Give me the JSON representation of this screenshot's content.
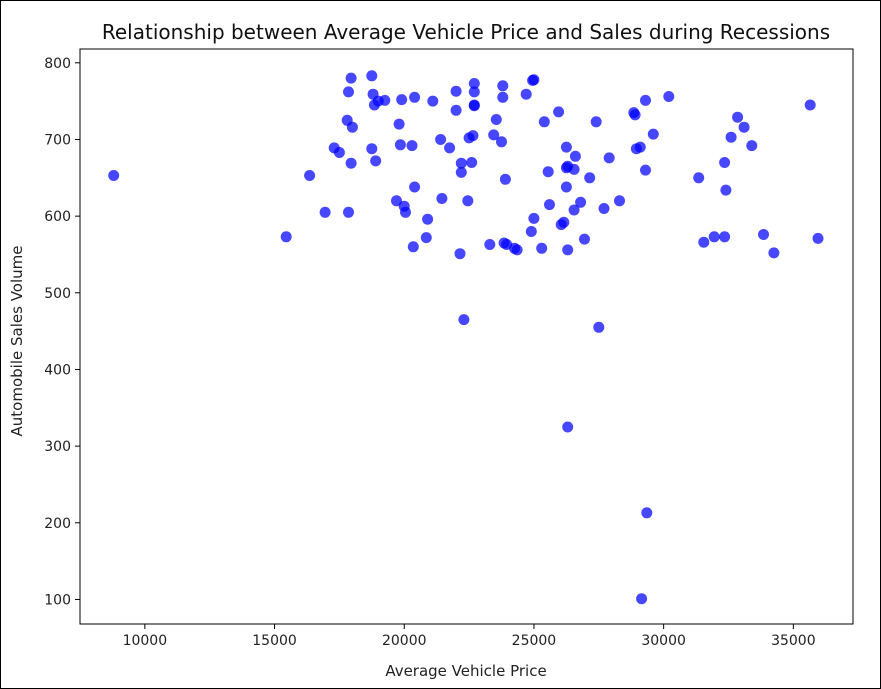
{
  "chart_data": {
    "type": "scatter",
    "title": "Relationship between Average Vehicle Price and Sales during Recessions",
    "xlabel": "Average Vehicle Price",
    "ylabel": "Automobile Sales Volume",
    "xlim": [
      7500,
      37300
    ],
    "ylim": [
      68,
      818
    ],
    "xticks": [
      10000,
      15000,
      20000,
      25000,
      30000,
      35000
    ],
    "yticks": [
      100,
      200,
      300,
      400,
      500,
      600,
      700,
      800
    ],
    "grid": false,
    "marker_color": "#0000ff",
    "marker_opacity": 0.72,
    "x": [
      8800,
      15450,
      16350,
      16950,
      17300,
      17500,
      17800,
      17850,
      17850,
      17950,
      17950,
      18000,
      18750,
      18750,
      18800,
      18850,
      18900,
      19000,
      19250,
      19700,
      19800,
      19850,
      19900,
      20000,
      20050,
      20300,
      20350,
      20400,
      20400,
      20850,
      20900,
      21100,
      21400,
      21450,
      21750,
      22000,
      22000,
      22150,
      22200,
      22200,
      22300,
      22450,
      22500,
      22600,
      22650,
      22700,
      22700,
      22700,
      22700,
      23300,
      23450,
      23550,
      23750,
      23800,
      23800,
      23850,
      23900,
      23950,
      24250,
      24350,
      24700,
      24900,
      24950,
      25000,
      25000,
      25300,
      25400,
      25550,
      25600,
      25950,
      26050,
      26150,
      26250,
      26250,
      26250,
      26300,
      26300,
      26300,
      26550,
      26550,
      26600,
      26800,
      26950,
      27150,
      27400,
      27500,
      27700,
      27900,
      28300,
      28850,
      28900,
      28950,
      29100,
      29150,
      29300,
      29300,
      29350,
      29600,
      30200,
      31350,
      31550,
      31950,
      32350,
      32350,
      32400,
      32600,
      32850,
      33100,
      33400,
      33850,
      34250,
      35650,
      35950
    ],
    "y": [
      653,
      573,
      653,
      605,
      689,
      683,
      725,
      605,
      762,
      669,
      780,
      716,
      783,
      688,
      759,
      745,
      672,
      750,
      751,
      620,
      720,
      693,
      752,
      613,
      605,
      692,
      560,
      755,
      638,
      572,
      596,
      750,
      700,
      623,
      689,
      763,
      738,
      551,
      669,
      657,
      465,
      620,
      702,
      670,
      705,
      762,
      773,
      745,
      744,
      563,
      706,
      726,
      697,
      770,
      755,
      565,
      648,
      563,
      558,
      556,
      759,
      580,
      777,
      778,
      597,
      558,
      723,
      658,
      615,
      736,
      589,
      592,
      690,
      663,
      638,
      325,
      556,
      665,
      608,
      661,
      678,
      618,
      570,
      650,
      723,
      455,
      610,
      676,
      620,
      735,
      732,
      688,
      690,
      101,
      660,
      751,
      213,
      707,
      756,
      650,
      566,
      573,
      670,
      573,
      634,
      703,
      729,
      716,
      692,
      576,
      552,
      745,
      571
    ]
  }
}
